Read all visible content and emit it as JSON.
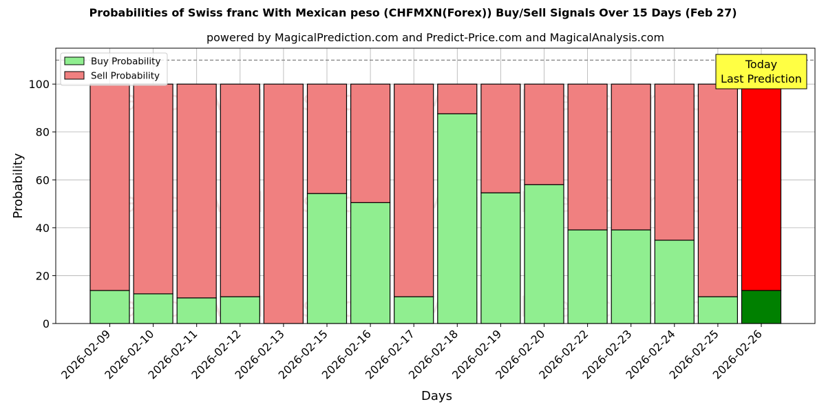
{
  "chart_data": {
    "type": "bar",
    "stacked": true,
    "title": "Probabilities of Swiss franc With Mexican peso (CHFMXN(Forex)) Buy/Sell Signals Over 15 Days (Feb 27)",
    "subtitle": "powered by MagicalPrediction.com and Predict-Price.com and MagicalAnalysis.com",
    "xlabel": "Days",
    "ylabel": "Probability",
    "ylim": [
      0,
      115
    ],
    "yticks": [
      0,
      20,
      40,
      60,
      80,
      100
    ],
    "dashed_line_y": 110,
    "grid": true,
    "legend_position": "top-left",
    "categories": [
      "2026-02-09",
      "2026-02-10",
      "2026-02-11",
      "2026-02-12",
      "2026-02-13",
      "2026-02-15",
      "2026-02-16",
      "2026-02-17",
      "2026-02-18",
      "2026-02-19",
      "2026-02-20",
      "2026-02-22",
      "2026-02-23",
      "2026-02-24",
      "2026-02-25",
      "2026-02-26"
    ],
    "series": [
      {
        "name": "Buy Probability",
        "color": "#90ee90",
        "values": [
          13.8,
          12.4,
          10.7,
          11.2,
          0,
          54.3,
          50.5,
          11.2,
          87.6,
          54.6,
          58.0,
          39.1,
          39.1,
          34.8,
          11.2,
          13.8
        ]
      },
      {
        "name": "Sell Probability",
        "color": "#f08080",
        "values": [
          86.2,
          87.6,
          89.3,
          88.8,
          100,
          45.7,
          49.5,
          88.8,
          12.4,
          45.4,
          42.0,
          60.9,
          60.9,
          65.2,
          88.8,
          86.2
        ]
      }
    ],
    "highlight": {
      "index": 15,
      "buy_color": "#008000",
      "sell_color": "#ff0000",
      "annotation": [
        "Today",
        "Last Prediction"
      ],
      "annotation_bg": "#ffff44"
    },
    "watermarks": [
      "MagicalAnalysis.com",
      "MagicalPrediction.com"
    ]
  }
}
